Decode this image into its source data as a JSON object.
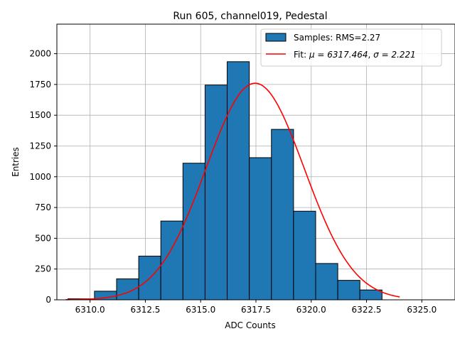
{
  "chart_data": {
    "type": "bar",
    "title": "Run 605, channel019, Pedestal",
    "xlabel": "ADC Counts",
    "ylabel": "Entries",
    "xlim": [
      6308.5,
      6326.5
    ],
    "ylim": [
      0,
      2240
    ],
    "xticks": [
      6310.0,
      6312.5,
      6315.0,
      6317.5,
      6320.0,
      6322.5,
      6325.0
    ],
    "xtick_labels": [
      "6310.0",
      "6312.5",
      "6315.0",
      "6317.5",
      "6320.0",
      "6322.5",
      "6325.0"
    ],
    "yticks": [
      0,
      250,
      500,
      750,
      1000,
      1250,
      1500,
      1750,
      2000
    ],
    "ytick_labels": [
      "0",
      "250",
      "500",
      "750",
      "1000",
      "1250",
      "1500",
      "1750",
      "2000"
    ],
    "grid": true,
    "legend_position": "top-right",
    "histogram": {
      "name": "Samples: RMS=2.27",
      "color": "#1f77b4",
      "edge_color": "#000000",
      "bin_edges": [
        6309.0,
        6310.2,
        6311.2,
        6312.2,
        6313.2,
        6314.2,
        6315.2,
        6316.2,
        6317.2,
        6318.2,
        6319.2,
        6320.2,
        6321.2,
        6322.2,
        6323.2,
        6324.2
      ],
      "counts": [
        8,
        70,
        170,
        355,
        640,
        1110,
        1745,
        1935,
        1155,
        1385,
        720,
        295,
        158,
        80,
        0
      ]
    },
    "fit": {
      "name_prefix": "Fit: ",
      "name_mu": "μ = 6317.464",
      "name_sep": ", ",
      "name_sigma": "σ = 2.221",
      "mu": 6317.464,
      "sigma": 2.221,
      "amplitude": 1760,
      "x_range": [
        6308.9,
        6324.0
      ],
      "color": "#ff0000"
    }
  }
}
